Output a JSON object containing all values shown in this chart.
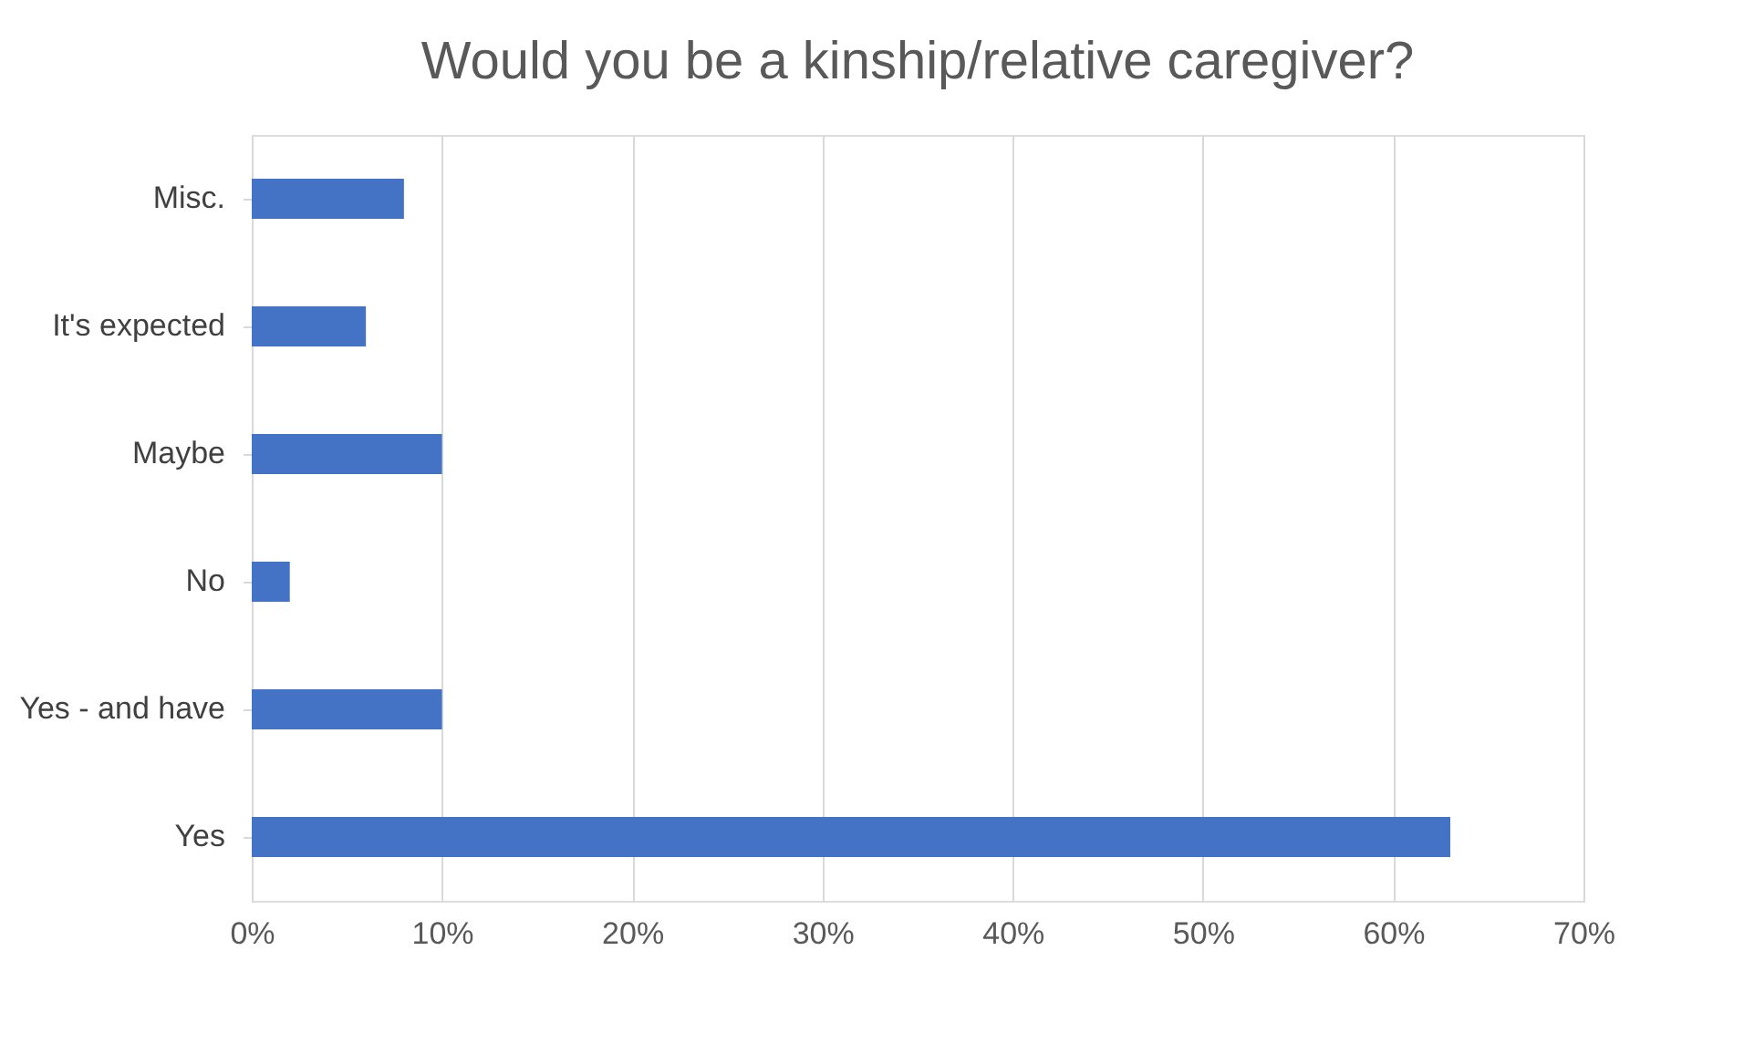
{
  "chart_data": {
    "type": "bar",
    "orientation": "horizontal",
    "title": "Would you be a kinship/relative caregiver?",
    "categories": [
      "Misc.",
      "It's expected",
      "Maybe",
      "No",
      "Yes - and have",
      "Yes"
    ],
    "values": [
      8,
      6,
      10,
      2,
      10,
      63
    ],
    "color": "#4472c4",
    "xlim": [
      0,
      70
    ],
    "xticks": [
      {
        "value": 0,
        "label": "0%"
      },
      {
        "value": 10,
        "label": "10%"
      },
      {
        "value": 20,
        "label": "20%"
      },
      {
        "value": 30,
        "label": "30%"
      },
      {
        "value": 40,
        "label": "40%"
      },
      {
        "value": 50,
        "label": "50%"
      },
      {
        "value": 60,
        "label": "60%"
      },
      {
        "value": 70,
        "label": "70%"
      }
    ],
    "grid": "x"
  }
}
